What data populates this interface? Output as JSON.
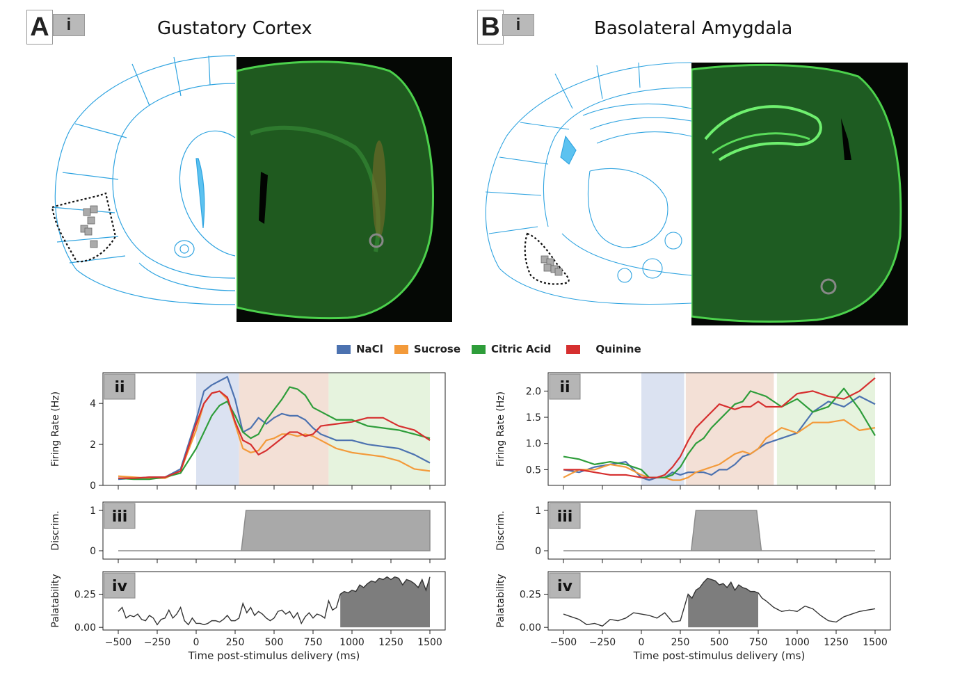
{
  "panels": {
    "A": {
      "letter": "A",
      "sub": "i",
      "title": "Gustatory Cortex"
    },
    "B": {
      "letter": "B",
      "sub": "i",
      "title": "Basolateral Amygdala"
    }
  },
  "legend": [
    {
      "label": "NaCl",
      "color": "#4c72b0"
    },
    {
      "label": "Sucrose",
      "color": "#f39a3a"
    },
    {
      "label": "Citric Acid",
      "color": "#2e9d3a"
    },
    {
      "label": "Quinine",
      "color": "#d62f2f"
    }
  ],
  "sublabels": {
    "ii": "ii",
    "iii": "iii",
    "iv": "iv"
  },
  "chart_data": [
    {
      "id": "A-ii",
      "type": "line",
      "ylabel": "Firing Rate (Hz)",
      "xlim": [
        -500,
        1500
      ],
      "ylim": [
        0,
        5.5
      ],
      "yticks": [
        0,
        2,
        4
      ],
      "epochs": [
        {
          "start": 0,
          "end": 275,
          "color": "#dbe2f1"
        },
        {
          "start": 275,
          "end": 850,
          "color": "#f3e0d6"
        },
        {
          "start": 850,
          "end": 1500,
          "color": "#e6f3de"
        }
      ],
      "x": [
        -500,
        -400,
        -300,
        -200,
        -100,
        0,
        50,
        100,
        150,
        200,
        250,
        300,
        350,
        400,
        450,
        500,
        550,
        600,
        650,
        700,
        750,
        800,
        900,
        1000,
        1100,
        1200,
        1300,
        1400,
        1500
      ],
      "series": [
        {
          "name": "NaCl",
          "color": "#4c72b0",
          "values": [
            0.3,
            0.35,
            0.4,
            0.4,
            0.8,
            3.2,
            4.6,
            4.9,
            5.1,
            5.3,
            4.2,
            2.6,
            2.8,
            3.3,
            3.0,
            3.3,
            3.5,
            3.4,
            3.4,
            3.2,
            2.8,
            2.5,
            2.2,
            2.2,
            2.0,
            1.9,
            1.8,
            1.5,
            1.1
          ]
        },
        {
          "name": "Sucrose",
          "color": "#f39a3a",
          "values": [
            0.45,
            0.4,
            0.35,
            0.35,
            0.7,
            2.7,
            4.0,
            4.5,
            4.6,
            4.2,
            3.0,
            1.8,
            1.6,
            1.7,
            2.2,
            2.3,
            2.5,
            2.5,
            2.4,
            2.5,
            2.4,
            2.2,
            1.8,
            1.6,
            1.5,
            1.4,
            1.2,
            0.8,
            0.7
          ]
        },
        {
          "name": "Citric Acid",
          "color": "#2e9d3a",
          "values": [
            0.35,
            0.3,
            0.3,
            0.4,
            0.6,
            1.8,
            2.6,
            3.4,
            3.9,
            4.1,
            3.4,
            2.6,
            2.3,
            2.5,
            3.2,
            3.7,
            4.2,
            4.8,
            4.7,
            4.4,
            3.8,
            3.6,
            3.2,
            3.2,
            2.9,
            2.8,
            2.7,
            2.5,
            2.3
          ]
        },
        {
          "name": "Quinine",
          "color": "#d62f2f",
          "values": [
            0.35,
            0.35,
            0.4,
            0.4,
            0.7,
            3.0,
            4.0,
            4.5,
            4.6,
            4.3,
            3.1,
            2.2,
            2.0,
            1.5,
            1.7,
            2.0,
            2.3,
            2.6,
            2.6,
            2.4,
            2.5,
            2.9,
            3.0,
            3.1,
            3.3,
            3.3,
            2.9,
            2.7,
            2.2
          ]
        }
      ]
    },
    {
      "id": "B-ii",
      "type": "line",
      "ylabel": "Firing Rate (Hz)",
      "xlim": [
        -500,
        1500
      ],
      "ylim": [
        0.2,
        2.35
      ],
      "yticks": [
        0.5,
        1.0,
        1.5,
        2.0
      ],
      "epochs": [
        {
          "start": 0,
          "end": 275,
          "color": "#dbe2f1"
        },
        {
          "start": 285,
          "end": 850,
          "color": "#f3e0d6"
        },
        {
          "start": 870,
          "end": 1500,
          "color": "#e6f3de"
        }
      ],
      "x": [
        -500,
        -400,
        -300,
        -200,
        -100,
        0,
        50,
        100,
        150,
        200,
        250,
        300,
        350,
        400,
        450,
        500,
        550,
        600,
        650,
        700,
        750,
        800,
        900,
        1000,
        1100,
        1200,
        1300,
        1400,
        1500
      ],
      "series": [
        {
          "name": "NaCl",
          "color": "#4c72b0",
          "values": [
            0.5,
            0.45,
            0.55,
            0.6,
            0.65,
            0.35,
            0.3,
            0.35,
            0.35,
            0.45,
            0.4,
            0.45,
            0.45,
            0.45,
            0.4,
            0.5,
            0.5,
            0.6,
            0.75,
            0.8,
            0.9,
            1.0,
            1.1,
            1.2,
            1.6,
            1.8,
            1.7,
            1.9,
            1.75
          ]
        },
        {
          "name": "Sucrose",
          "color": "#f39a3a",
          "values": [
            0.35,
            0.5,
            0.5,
            0.6,
            0.55,
            0.4,
            0.35,
            0.35,
            0.35,
            0.3,
            0.3,
            0.35,
            0.45,
            0.5,
            0.55,
            0.6,
            0.7,
            0.8,
            0.85,
            0.8,
            0.9,
            1.1,
            1.3,
            1.2,
            1.4,
            1.4,
            1.45,
            1.25,
            1.3
          ]
        },
        {
          "name": "Citric Acid",
          "color": "#2e9d3a",
          "values": [
            0.75,
            0.7,
            0.6,
            0.65,
            0.6,
            0.5,
            0.35,
            0.35,
            0.35,
            0.4,
            0.55,
            0.8,
            1.0,
            1.1,
            1.3,
            1.45,
            1.6,
            1.75,
            1.8,
            2.0,
            1.95,
            1.9,
            1.7,
            1.85,
            1.6,
            1.7,
            2.05,
            1.65,
            1.15
          ]
        },
        {
          "name": "Quinine",
          "color": "#d62f2f",
          "values": [
            0.5,
            0.5,
            0.45,
            0.4,
            0.4,
            0.35,
            0.35,
            0.35,
            0.4,
            0.55,
            0.75,
            1.05,
            1.3,
            1.45,
            1.6,
            1.75,
            1.7,
            1.65,
            1.7,
            1.7,
            1.8,
            1.7,
            1.7,
            1.95,
            2.0,
            1.9,
            1.85,
            2.0,
            2.25
          ]
        }
      ]
    },
    {
      "id": "A-iii",
      "type": "area",
      "ylabel": "Discrim.",
      "xlim": [
        -500,
        1500
      ],
      "ylim": [
        0,
        1
      ],
      "yticks": [
        0,
        1
      ],
      "x": [
        -500,
        290,
        320,
        1500
      ],
      "values": [
        0,
        0,
        1,
        1
      ]
    },
    {
      "id": "B-iii",
      "type": "area",
      "ylabel": "Discrim.",
      "xlim": [
        -500,
        1500
      ],
      "ylim": [
        0,
        1
      ],
      "yticks": [
        0,
        1
      ],
      "x": [
        -500,
        320,
        350,
        740,
        770,
        1500
      ],
      "values": [
        0,
        0,
        1,
        1,
        0,
        0
      ]
    },
    {
      "id": "A-iv",
      "type": "line",
      "ylabel": "Palatability",
      "xlim": [
        -500,
        1500
      ],
      "ylim": [
        -0.02,
        0.42
      ],
      "yticks": [
        0.0,
        0.25
      ],
      "xticks": [
        -500,
        -250,
        0,
        250,
        500,
        750,
        1000,
        1250,
        1500
      ],
      "xlabel": "Time post-stimulus delivery (ms)",
      "fill_from": 920,
      "x": [
        -500,
        -475,
        -450,
        -425,
        -400,
        -375,
        -350,
        -325,
        -300,
        -275,
        -250,
        -225,
        -200,
        -175,
        -150,
        -125,
        -100,
        -75,
        -50,
        -25,
        0,
        25,
        50,
        75,
        100,
        125,
        150,
        175,
        200,
        225,
        250,
        275,
        300,
        325,
        350,
        375,
        400,
        425,
        450,
        475,
        500,
        525,
        550,
        575,
        600,
        625,
        650,
        675,
        700,
        725,
        750,
        775,
        800,
        825,
        850,
        875,
        900,
        925,
        950,
        975,
        1000,
        1025,
        1050,
        1075,
        1100,
        1125,
        1150,
        1175,
        1200,
        1225,
        1250,
        1275,
        1300,
        1325,
        1350,
        1375,
        1400,
        1425,
        1450,
        1475,
        1500
      ],
      "values": [
        0.12,
        0.15,
        0.07,
        0.09,
        0.08,
        0.1,
        0.06,
        0.05,
        0.09,
        0.07,
        0.02,
        0.06,
        0.07,
        0.13,
        0.07,
        0.1,
        0.15,
        0.05,
        0.02,
        0.07,
        0.03,
        0.03,
        0.02,
        0.03,
        0.05,
        0.05,
        0.04,
        0.06,
        0.09,
        0.05,
        0.05,
        0.07,
        0.18,
        0.11,
        0.15,
        0.09,
        0.12,
        0.1,
        0.07,
        0.05,
        0.07,
        0.12,
        0.13,
        0.1,
        0.12,
        0.07,
        0.11,
        0.03,
        0.08,
        0.11,
        0.07,
        0.1,
        0.09,
        0.07,
        0.2,
        0.13,
        0.15,
        0.25,
        0.27,
        0.26,
        0.28,
        0.27,
        0.32,
        0.3,
        0.33,
        0.35,
        0.34,
        0.37,
        0.36,
        0.38,
        0.36,
        0.38,
        0.37,
        0.32,
        0.36,
        0.35,
        0.33,
        0.3,
        0.36,
        0.28,
        0.38
      ]
    },
    {
      "id": "B-iv",
      "type": "line",
      "ylabel": "Palatability",
      "xlim": [
        -500,
        1500
      ],
      "ylim": [
        -0.02,
        0.42
      ],
      "yticks": [
        0.0,
        0.25
      ],
      "xticks": [
        -500,
        -250,
        0,
        250,
        500,
        750,
        1000,
        1250,
        1500
      ],
      "xlabel": "Time post-stimulus delivery (ms)",
      "fill_from": 300,
      "fill_to": 770,
      "x": [
        -500,
        -450,
        -400,
        -350,
        -300,
        -250,
        -200,
        -150,
        -100,
        -50,
        0,
        50,
        100,
        150,
        200,
        250,
        300,
        325,
        350,
        375,
        400,
        425,
        450,
        475,
        500,
        525,
        550,
        575,
        600,
        625,
        650,
        675,
        700,
        725,
        750,
        775,
        800,
        850,
        900,
        950,
        1000,
        1050,
        1100,
        1150,
        1200,
        1250,
        1300,
        1350,
        1400,
        1450,
        1500
      ],
      "values": [
        0.1,
        0.08,
        0.06,
        0.02,
        0.03,
        0.01,
        0.06,
        0.05,
        0.07,
        0.11,
        0.1,
        0.09,
        0.07,
        0.11,
        0.04,
        0.05,
        0.25,
        0.22,
        0.28,
        0.3,
        0.34,
        0.37,
        0.36,
        0.35,
        0.32,
        0.33,
        0.3,
        0.34,
        0.28,
        0.32,
        0.3,
        0.29,
        0.27,
        0.27,
        0.26,
        0.22,
        0.2,
        0.15,
        0.12,
        0.13,
        0.12,
        0.16,
        0.14,
        0.09,
        0.05,
        0.04,
        0.08,
        0.1,
        0.12,
        0.13,
        0.14
      ]
    }
  ]
}
